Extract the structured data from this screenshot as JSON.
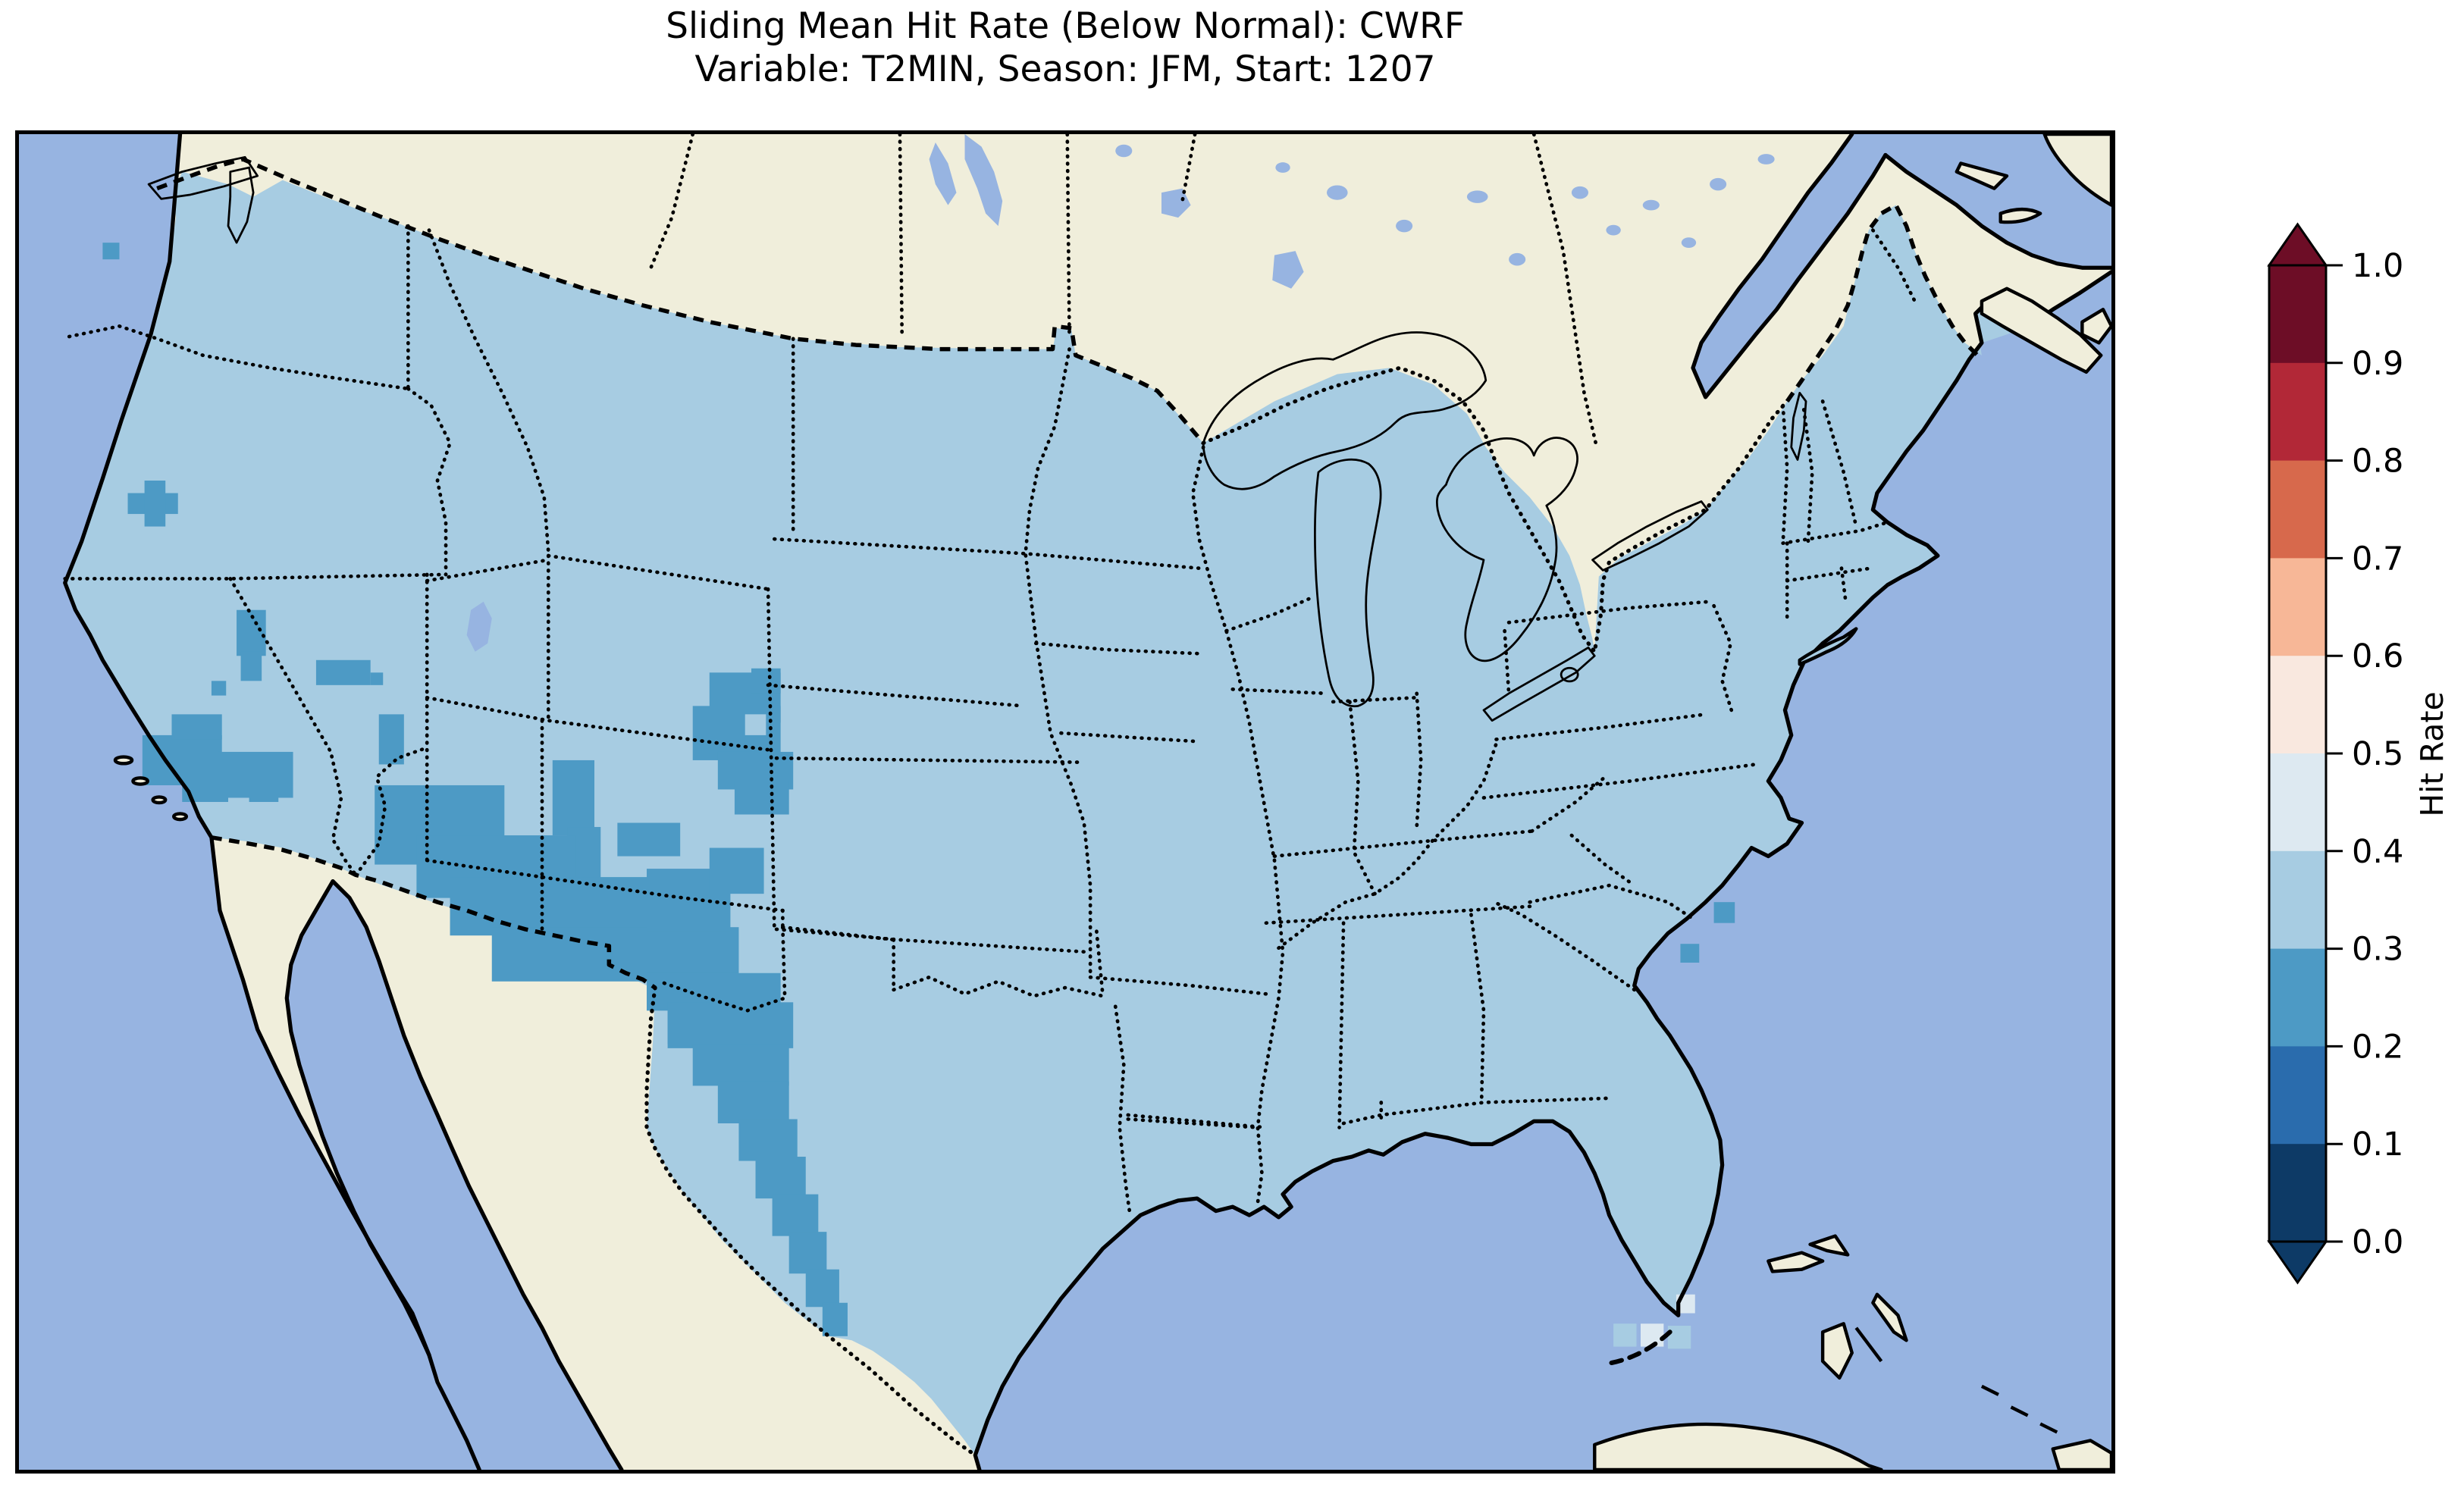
{
  "title": {
    "line1": "Sliding Mean Hit Rate (Below Normal): CWRF",
    "line2": "Variable: T2MIN, Season: JFM, Start: 1207"
  },
  "colors": {
    "water": "#97b4e1",
    "land": "#f0eedb",
    "frame": "#000000"
  },
  "colorbar": {
    "label": "Hit Rate",
    "ticks": [
      "1.0",
      "0.9",
      "0.8",
      "0.7",
      "0.6",
      "0.5",
      "0.4",
      "0.3",
      "0.2",
      "0.1",
      "0.0"
    ],
    "bin_colors": [
      "#0d3a66",
      "#2a6cad",
      "#4d9ac5",
      "#a7cce2",
      "#dde9f1",
      "#f9e8df",
      "#f7b797",
      "#d7694c",
      "#b22837",
      "#6d0d26"
    ],
    "segments_top_to_bottom": [
      "#6d0d26",
      "#b22837",
      "#d7694c",
      "#f7b797",
      "#f9e8df",
      "#dde9f1",
      "#a7cce2",
      "#4d9ac5",
      "#2a6cad",
      "#0d3a66"
    ],
    "over_color": "#6d0d26",
    "under_color": "#0d3a66",
    "range": [
      0.0,
      1.0
    ],
    "bin_width": 0.1
  },
  "chart_data": {
    "type": "heatmap",
    "title": "Sliding Mean Hit Rate (Below Normal): CWRF",
    "subtitle": "Variable: T2MIN, Season: JFM, Start: 1207",
    "value_label": "Hit Rate",
    "value_range": [
      0.0,
      1.0
    ],
    "bins": [
      0.0,
      0.1,
      0.2,
      0.3,
      0.4,
      0.5,
      0.6,
      0.7,
      0.8,
      0.9,
      1.0
    ],
    "base_bin": 3,
    "base_bin_range": [
      0.3,
      0.4
    ],
    "legend_position": "right",
    "description_of_field": "CONUS mostly 0.3-0.4; patches of 0.2-0.3 over the Southwest (S. California, Arizona, New Mexico, west Texas along the Rio Grande, central Utah/Colorado, Nevada spots, NW California) and two coastal South Carolina cells; a few 0.4-0.5 cells off south Florida.",
    "cells": [
      {
        "b": 2,
        "r": [
          40,
          52,
          8,
          8
        ]
      },
      {
        "b": 2,
        "r": [
          52,
          172,
          24,
          10
        ]
      },
      {
        "b": 2,
        "r": [
          60,
          166,
          10,
          22
        ]
      },
      {
        "b": 2,
        "r": [
          104,
          228,
          14,
          22
        ]
      },
      {
        "b": 2,
        "r": [
          106,
          248,
          10,
          14
        ]
      },
      {
        "b": 2,
        "r": [
          92,
          262,
          7,
          7
        ]
      },
      {
        "b": 2,
        "r": [
          142,
          252,
          26,
          12
        ]
      },
      {
        "b": 2,
        "r": [
          168,
          258,
          6,
          6
        ]
      },
      {
        "b": 2,
        "r": [
          172,
          278,
          12,
          24
        ]
      },
      {
        "b": 2,
        "r": [
          59,
          288,
          38,
          24
        ]
      },
      {
        "b": 2,
        "r": [
          73,
          278,
          24,
          12
        ]
      },
      {
        "b": 2,
        "r": [
          95,
          296,
          36,
          22
        ]
      },
      {
        "b": 2,
        "r": [
          78,
          308,
          22,
          12
        ]
      },
      {
        "b": 2,
        "r": [
          110,
          310,
          14,
          10
        ]
      },
      {
        "b": 2,
        "r": [
          330,
          258,
          34,
          24
        ]
      },
      {
        "b": 2,
        "r": [
          322,
          274,
          42,
          26
        ]
      },
      {
        "b": 2,
        "r": [
          334,
          296,
          36,
          18
        ]
      },
      {
        "b": 2,
        "r": [
          342,
          310,
          26,
          16
        ]
      },
      {
        "b": 2,
        "r": [
          350,
          256,
          14,
          12
        ]
      },
      {
        "b": 2,
        "r": [
          255,
          300,
          20,
          36
        ]
      },
      {
        "b": 2,
        "r": [
          262,
          332,
          16,
          40
        ]
      },
      {
        "b": 2,
        "r": [
          170,
          312,
          62,
          38
        ]
      },
      {
        "b": 2,
        "r": [
          190,
          336,
          76,
          30
        ]
      },
      {
        "b": 2,
        "r": [
          206,
          356,
          104,
          28
        ]
      },
      {
        "b": 2,
        "r": [
          226,
          380,
          118,
          26
        ]
      },
      {
        "b": 2,
        "r": [
          300,
          402,
          64,
          18
        ]
      },
      {
        "b": 2,
        "r": [
          310,
          420,
          40,
          16
        ]
      },
      {
        "b": 2,
        "r": [
          300,
          352,
          40,
          30
        ]
      },
      {
        "b": 2,
        "r": [
          330,
          342,
          26,
          22
        ]
      },
      {
        "b": 2,
        "r": [
          286,
          330,
          30,
          16
        ]
      },
      {
        "b": 2,
        "r": [
          310,
          416,
          60,
          22
        ]
      },
      {
        "b": 2,
        "r": [
          322,
          436,
          46,
          20
        ]
      },
      {
        "b": 2,
        "r": [
          334,
          454,
          34,
          20
        ]
      },
      {
        "b": 2,
        "r": [
          344,
          472,
          28,
          20
        ]
      },
      {
        "b": 2,
        "r": [
          352,
          490,
          24,
          20
        ]
      },
      {
        "b": 2,
        "r": [
          360,
          508,
          22,
          20
        ]
      },
      {
        "b": 2,
        "r": [
          368,
          526,
          18,
          20
        ]
      },
      {
        "b": 2,
        "r": [
          376,
          544,
          16,
          18
        ]
      },
      {
        "b": 2,
        "r": [
          384,
          560,
          12,
          16
        ]
      },
      {
        "b": 2,
        "r": [
          810,
          368,
          10,
          10
        ]
      },
      {
        "b": 2,
        "r": [
          794,
          388,
          9,
          9
        ]
      },
      {
        "b": 3,
        "r": [
          347,
          278,
          10,
          10
        ]
      },
      {
        "b": 3,
        "r": [
          762,
          570,
          11,
          11
        ]
      },
      {
        "b": 3,
        "r": [
          788,
          571,
          11,
          11
        ]
      },
      {
        "b": 4,
        "r": [
          775,
          570,
          11,
          11
        ]
      },
      {
        "b": 4,
        "r": [
          792,
          556,
          9,
          9
        ]
      }
    ]
  }
}
